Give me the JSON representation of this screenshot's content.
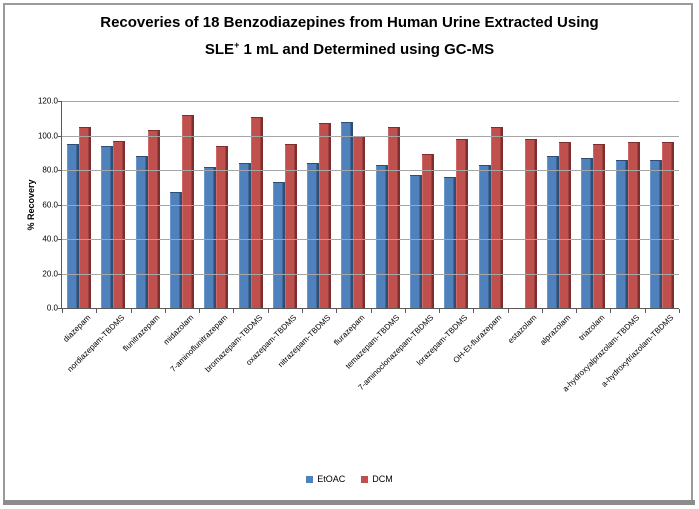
{
  "header": {
    "title_line1": "Recoveries of 18 Benzodiazepines from Human Urine Extracted Using",
    "title_sle": "SLE",
    "title_sup": "+",
    "title_rest": " 1 mL and Determined using GC-MS"
  },
  "y_axis": {
    "label": "% Recovery",
    "ticks": [
      "120.0",
      "100.0",
      "80.0",
      "60.0",
      "40.0",
      "20.0",
      "0.0"
    ]
  },
  "colors": {
    "axis": "#595959",
    "gridline": "#a6a6a6",
    "border": "#9a9a9a",
    "border_bottom": "#8c8c8c"
  },
  "chart_data": {
    "type": "bar",
    "title": "Recoveries of 18 Benzodiazepines from Human Urine Extracted Using SLE+ 1 mL and Determined using GC-MS",
    "xlabel": "",
    "ylabel": "% Recovery",
    "ylim": [
      0,
      120
    ],
    "ytick_step": 20,
    "grid": true,
    "legend_position": "bottom",
    "categories": [
      "diazepam",
      "nordiazepam-TBDMS",
      "flunitrazepam",
      "midazolam",
      "7-aminoflunitrazepam",
      "bromazepam-TBDMS",
      "oxazepam-TBDMS",
      "nitrazepam-TBDMS",
      "flurazepam",
      "temazepam-TBDMS",
      "7-aminoclonazepam-TBDMS",
      "lorazepam-TBDMS",
      "OH-Et-flurazepam",
      "estazolam",
      "alprazolam",
      "triazolam",
      "a-hydroxyalprazolam-TBDMS",
      "a-hydroxytriazolam-TBDMS"
    ],
    "series": [
      {
        "name": "EtOAC",
        "color": "#4f81bd",
        "color_light": "#6c97cb",
        "color_dark": "#2f4e75",
        "values": [
          95,
          94,
          88,
          67,
          82,
          84,
          73,
          84,
          108,
          83,
          77,
          76,
          83,
          0,
          88,
          87,
          86,
          86
        ]
      },
      {
        "name": "DCM",
        "color": "#c0504d",
        "color_light": "#cd6865",
        "color_dark": "#7c2f2d",
        "values": [
          105,
          97,
          103,
          112,
          94,
          111,
          95,
          107,
          100,
          105,
          89,
          98,
          105,
          98,
          96,
          95,
          96,
          96
        ]
      }
    ]
  }
}
